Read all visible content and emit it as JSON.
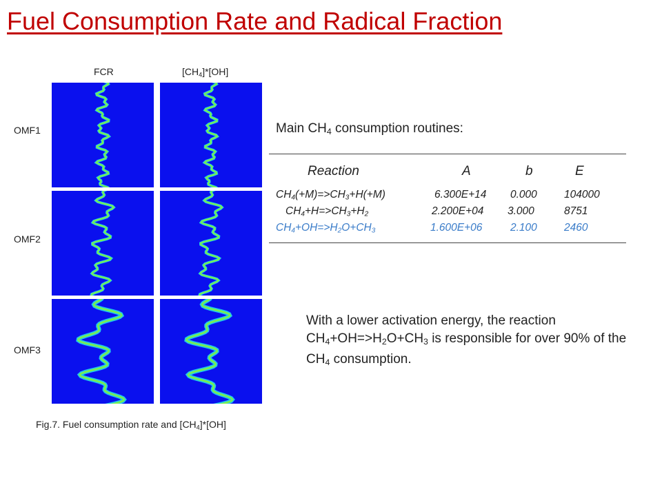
{
  "slide": {
    "title": "Fuel Consumption Rate and Radical Fraction"
  },
  "figure": {
    "col_labels": [
      "FCR",
      "[CH4]*[OH]"
    ],
    "row_labels": [
      "OMF1",
      "OMF2",
      "OMF3"
    ],
    "caption": "Fig.7. Fuel consumption rate and [CH4]*[OH]",
    "colors": {
      "background": "#0a10ee",
      "flame_outer": "#22c8e8",
      "flame_inner": "#7cf04a"
    }
  },
  "table": {
    "heading": "Main CH4 consumption routines:",
    "columns": [
      "Reaction",
      "A",
      "b",
      "E"
    ],
    "rows": [
      {
        "reaction": "CH4(+M)=>CH3+H(+M)",
        "A": "6.300E+14",
        "b": "0.000",
        "E": "104000"
      },
      {
        "reaction": "CH4+H=>CH3+H2",
        "A": "2.200E+04",
        "b": "3.000",
        "E": "8751"
      },
      {
        "reaction": "CH4+OH=>H2O+CH3",
        "A": "1.600E+06",
        "b": "2.100",
        "E": "2460"
      }
    ],
    "highlight_color": "#3a7cc9"
  },
  "note": {
    "text": "With a lower activation energy, the reaction CH4+OH=>H2O+CH3 is responsible for over 90% of the CH4 consumption."
  }
}
